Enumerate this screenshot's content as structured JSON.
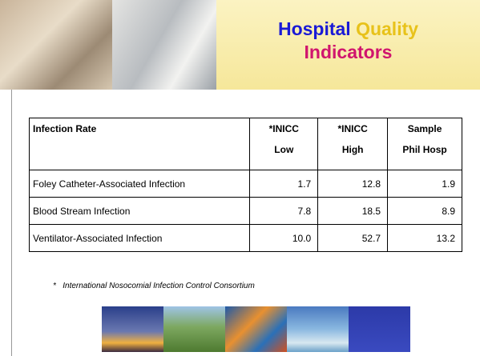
{
  "slide": {
    "title": {
      "part1": "Hospital",
      "part2": "Quality",
      "part3": "Indicators"
    },
    "table": {
      "header": [
        [
          "Infection Rate"
        ],
        [
          "*INICC",
          "Low"
        ],
        [
          "*INICC",
          "High"
        ],
        [
          "Sample",
          "Phil Hosp"
        ]
      ],
      "rows": [
        [
          "Foley Catheter-Associated Infection",
          "1.7",
          "12.8",
          "1.9"
        ],
        [
          "Blood Stream Infection",
          "7.8",
          "18.5",
          "8.9"
        ],
        [
          "Ventilator-Associated Infection",
          "10.0",
          "52.7",
          "13.2"
        ]
      ]
    },
    "footnote": {
      "mark": "*",
      "text": "International Nosocomial Infection  Control Consortium"
    }
  }
}
